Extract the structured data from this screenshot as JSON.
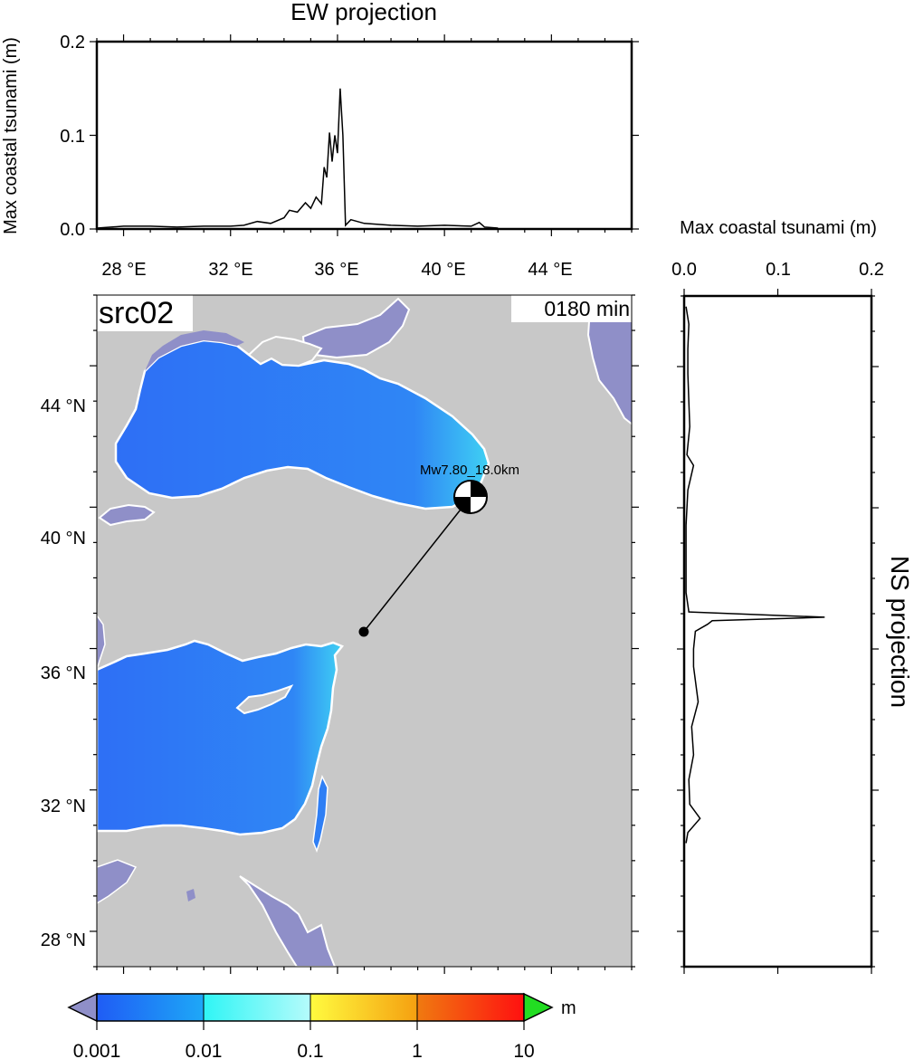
{
  "ew_projection": {
    "title": "EW projection",
    "ylabel": "Max coastal tsunami (m)",
    "yticks": [
      "0.0",
      "0.1",
      "0.2"
    ],
    "xticks": [
      "28 °E",
      "32 °E",
      "36 °E",
      "40 °E",
      "44 °E"
    ]
  },
  "ns_projection": {
    "title": "NS projection",
    "xlabel": "Max coastal tsunami (m)",
    "xticks": [
      "0.0",
      "0.1",
      "0.2"
    ]
  },
  "map": {
    "scenario_label": "src02",
    "time_label": "0180 min",
    "yticks": [
      "44 °N",
      "40 °N",
      "36 °N",
      "32 °N",
      "28 °N"
    ],
    "event_label": "Mw7.80_18.0km",
    "colors": {
      "land": "#c8c8c8",
      "sea_out": "#8f8fc8",
      "sea_tsunami": "#2f7ff5",
      "coastline": "#ffffff"
    }
  },
  "colorbar": {
    "ticks": [
      "0.001",
      "0.01",
      "0.1",
      "1",
      "10"
    ],
    "unit": "m",
    "under_color": "#8f8fc8",
    "over_color": "#22dd22"
  },
  "chart_data": [
    {
      "type": "line",
      "title": "EW projection",
      "ylabel": "Max coastal tsunami (m)",
      "xlim": [
        27,
        47
      ],
      "ylim": [
        0,
        0.2
      ],
      "x": [
        27.0,
        28.0,
        29.0,
        30.0,
        31.0,
        32.0,
        32.5,
        33.0,
        33.5,
        34.0,
        34.2,
        34.5,
        34.8,
        35.0,
        35.2,
        35.4,
        35.5,
        35.6,
        35.7,
        35.8,
        35.9,
        36.0,
        36.1,
        36.2,
        36.3,
        36.5,
        37.0,
        38.0,
        39.0,
        40.0,
        41.0,
        41.3,
        41.5,
        42.0
      ],
      "y": [
        0.001,
        0.003,
        0.003,
        0.002,
        0.003,
        0.003,
        0.004,
        0.008,
        0.006,
        0.012,
        0.02,
        0.018,
        0.028,
        0.022,
        0.034,
        0.027,
        0.066,
        0.055,
        0.103,
        0.072,
        0.1,
        0.081,
        0.15,
        0.1,
        0.004,
        0.01,
        0.006,
        0.004,
        0.003,
        0.004,
        0.003,
        0.007,
        0.002,
        0.001
      ]
    },
    {
      "type": "line",
      "title": "NS projection",
      "xlabel": "Max coastal tsunami (m)",
      "xlim": [
        0,
        0.2
      ],
      "ylim": [
        27,
        46
      ],
      "lat": [
        45.7,
        45.2,
        44.5,
        43.8,
        43.0,
        42.3,
        41.5,
        41.2,
        40.5,
        39.5,
        38.5,
        37.6,
        37.05,
        36.9,
        36.8,
        36.7,
        36.5,
        36.0,
        35.5,
        34.5,
        33.8,
        33.0,
        32.3,
        31.6,
        31.2,
        30.8,
        30.5
      ],
      "values": [
        0.002,
        0.005,
        0.004,
        0.004,
        0.005,
        0.006,
        0.003,
        0.01,
        0.004,
        0.002,
        0.002,
        0.002,
        0.005,
        0.15,
        0.03,
        0.025,
        0.012,
        0.01,
        0.01,
        0.015,
        0.008,
        0.01,
        0.005,
        0.006,
        0.017,
        0.004,
        0.002
      ]
    }
  ]
}
